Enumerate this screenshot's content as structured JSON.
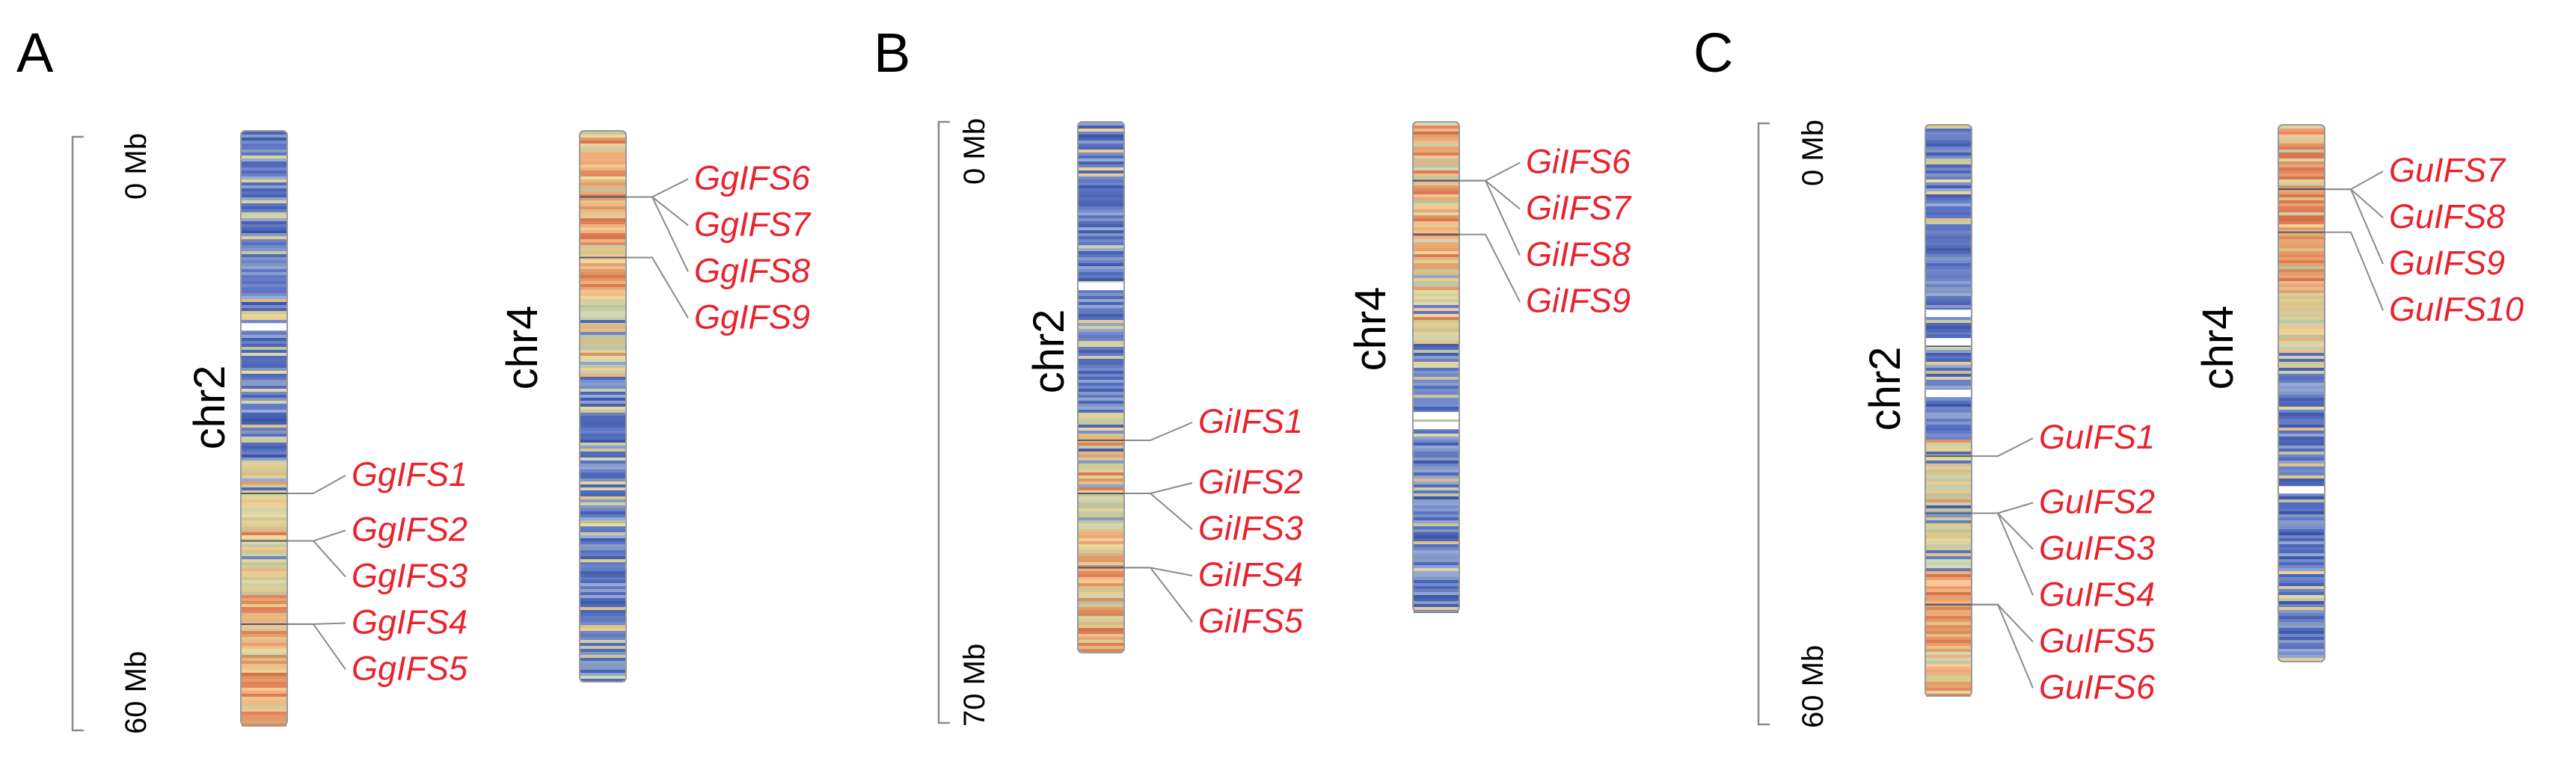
{
  "panels": [
    {
      "label": "A",
      "scale": {
        "top": "0 Mb",
        "bottom": "60 Mb"
      },
      "chromosomes": [
        {
          "name": "chr2",
          "palette": "blue-top",
          "gaps": [
            0.33
          ],
          "genes": [
            {
              "name": "GgIFS1",
              "pos": 0.61
            },
            {
              "name": "GgIFS2",
              "pos": 0.69
            },
            {
              "name": "GgIFS3",
              "pos": 0.69
            },
            {
              "name": "GgIFS4",
              "pos": 0.83
            },
            {
              "name": "GgIFS5",
              "pos": 0.83
            }
          ]
        },
        {
          "name": "chr4",
          "palette": "orange-top",
          "gaps": [],
          "genes": [
            {
              "name": "GgIFS6",
              "pos": 0.12
            },
            {
              "name": "GgIFS7",
              "pos": 0.12
            },
            {
              "name": "GgIFS8",
              "pos": 0.12
            },
            {
              "name": "GgIFS9",
              "pos": 0.23
            }
          ]
        }
      ]
    },
    {
      "label": "B",
      "scale": {
        "top": "0 Mb",
        "bottom": "70 Mb"
      },
      "chromosomes": [
        {
          "name": "chr2",
          "palette": "blue-top",
          "gaps": [
            0.31
          ],
          "genes": [
            {
              "name": "GiIFS1",
              "pos": 0.6
            },
            {
              "name": "GiIFS2",
              "pos": 0.7
            },
            {
              "name": "GiIFS3",
              "pos": 0.7
            },
            {
              "name": "GiIFS4",
              "pos": 0.84
            },
            {
              "name": "GiIFS5",
              "pos": 0.84
            }
          ]
        },
        {
          "name": "chr4",
          "palette": "orange-top",
          "gaps": [
            0.6,
            0.62
          ],
          "genes": [
            {
              "name": "GiIFS6",
              "pos": 0.12
            },
            {
              "name": "GiIFS7",
              "pos": 0.12
            },
            {
              "name": "GiIFS8",
              "pos": 0.12
            },
            {
              "name": "GiIFS9",
              "pos": 0.23
            }
          ]
        }
      ]
    },
    {
      "label": "C",
      "scale": {
        "top": "0 Mb",
        "bottom": "60 Mb"
      },
      "chromosomes": [
        {
          "name": "chr2",
          "palette": "blue-top",
          "gaps": [
            0.33,
            0.38,
            0.47
          ],
          "genes": [
            {
              "name": "GuIFS1",
              "pos": 0.58
            },
            {
              "name": "GuIFS2",
              "pos": 0.68
            },
            {
              "name": "GuIFS3",
              "pos": 0.68
            },
            {
              "name": "GuIFS4",
              "pos": 0.68
            },
            {
              "name": "GuIFS5",
              "pos": 0.84
            },
            {
              "name": "GuIFS6",
              "pos": 0.84
            }
          ]
        },
        {
          "name": "chr4",
          "palette": "orange-top",
          "gaps": [
            0.68
          ],
          "genes": [
            {
              "name": "GuIFS7",
              "pos": 0.12
            },
            {
              "name": "GuIFS8",
              "pos": 0.12
            },
            {
              "name": "GuIFS9",
              "pos": 0.12
            },
            {
              "name": "GuIFS10",
              "pos": 0.2
            }
          ]
        }
      ]
    }
  ]
}
